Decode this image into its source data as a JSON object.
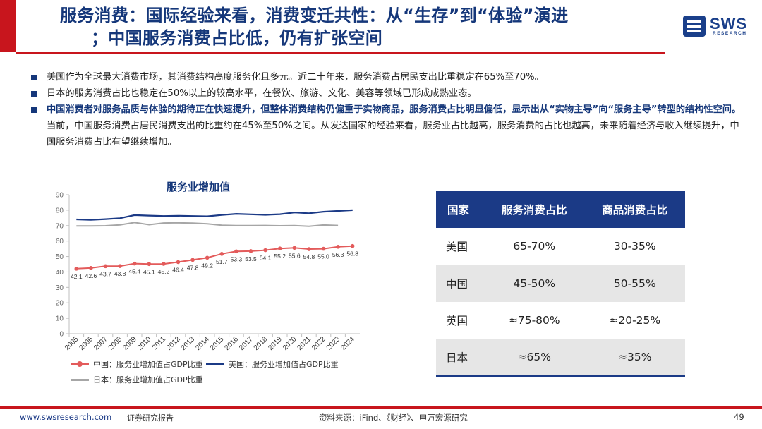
{
  "header": {
    "title_line1": "服务消费：国际经验来看，消费变迁共性：从“生存”到“体验”演进",
    "title_line2": "；中国服务消费占比低，仍有扩张空间",
    "logo_text": "SWS",
    "logo_sub": "RESEARCH"
  },
  "bullets": [
    {
      "normal": "美国作为全球最大消费市场，其消费结构高度服务化且多元。近二十年来，服务消费占居民支出比重稳定在65%至70%。"
    },
    {
      "normal": "日本的服务消费占比也稳定在50%以上的较高水平，在餐饮、旅游、文化、美容等领域已形成成熟业态。"
    },
    {
      "bold": "中国消费者对服务品质与体验的期待正在快速提升，但整体消费结构仍偏重于实物商品，服务消费占比明显偏低，显示出从“实物主导”向“服务主导”转型的结构性空间。",
      "normal": "当前，中国服务消费占居民消费支出的比重约在45%至50%之间。从发达国家的经验来看，服务业占比越高，服务消费的占比也越高，未来随着经济与收入继续提升，中国服务消费占比有望继续增加。"
    }
  ],
  "table": {
    "headers": [
      "国家",
      "服务消费占比",
      "商品消费占比"
    ],
    "rows": [
      [
        "美国",
        "65-70%",
        "30-35%"
      ],
      [
        "中国",
        "45-50%",
        "50-55%"
      ],
      [
        "英国",
        "≈75-80%",
        "≈20-25%"
      ],
      [
        "日本",
        "≈65%",
        "≈35%"
      ]
    ]
  },
  "chart_data": {
    "type": "line",
    "title": "服务业增加值",
    "x": [
      "2005",
      "2006",
      "2007",
      "2008",
      "2009",
      "2010",
      "2011",
      "2012",
      "2013",
      "2014",
      "2015",
      "2016",
      "2017",
      "2018",
      "2019",
      "2020",
      "2021",
      "2022",
      "2023",
      "2024"
    ],
    "ylim": [
      0,
      90
    ],
    "yticks": [
      0,
      10,
      20,
      30,
      40,
      50,
      60,
      70,
      80,
      90
    ],
    "series": [
      {
        "name": "中国：服务业增加值占GDP比重",
        "color": "#e35b5b",
        "values": [
          42.1,
          42.6,
          43.7,
          43.8,
          45.4,
          45.1,
          45.2,
          46.4,
          47.8,
          49.2,
          51.7,
          53.3,
          53.5,
          54.1,
          55.2,
          55.6,
          54.8,
          55.0,
          56.3,
          56.8
        ],
        "labels": [
          "42.1",
          "42.6",
          "43.7",
          "43.8",
          "45.4",
          "45.1",
          "45.2",
          "46.4",
          "47.8",
          "49.2",
          "51.7",
          "53.3",
          "53.5",
          "54.1",
          "55.2",
          "55.6",
          "54.8",
          "55.0",
          "56.3",
          "56.8"
        ]
      },
      {
        "name": "美国：服务业增加值占GDP比重",
        "color": "#1b3a86",
        "values": [
          74.0,
          73.7,
          74.2,
          74.8,
          76.8,
          76.5,
          76.2,
          76.4,
          76.2,
          76.0,
          76.9,
          77.6,
          77.3,
          77.0,
          77.4,
          78.5,
          78.0,
          79.0,
          79.5,
          80.0
        ]
      },
      {
        "name": "日本：服务业增加值占GDP比重",
        "color": "#a6a6a6",
        "values": [
          69.8,
          69.8,
          69.9,
          70.5,
          72.0,
          70.6,
          71.7,
          71.8,
          71.6,
          71.2,
          70.2,
          70.0,
          70.0,
          70.1,
          69.9,
          70.0,
          69.6,
          70.4,
          70.1,
          null
        ]
      }
    ]
  },
  "footer": {
    "website": "www.swsresearch.com",
    "report_type": "证券研究报告",
    "source": "资料来源：iFind、《财经》、申万宏源研究",
    "page_number": "49"
  }
}
